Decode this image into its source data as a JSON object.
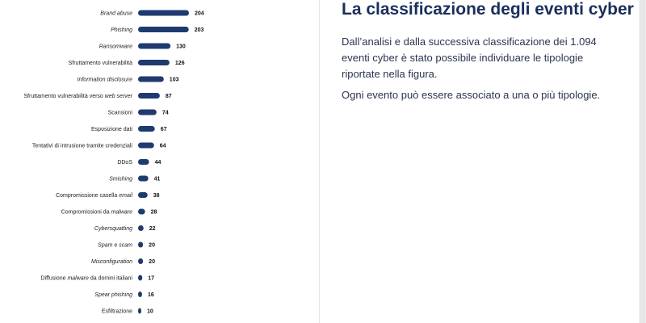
{
  "chart_data": {
    "type": "bar",
    "orientation": "horizontal",
    "categories": [
      [
        {
          "t": "Brand abuse",
          "i": true
        }
      ],
      [
        {
          "t": "Phishing",
          "i": true
        }
      ],
      [
        {
          "t": "Ransomware",
          "i": true
        }
      ],
      [
        {
          "t": "Sfruttamento vulnerabilità",
          "i": false
        }
      ],
      [
        {
          "t": "Information disclosure",
          "i": true
        }
      ],
      [
        {
          "t": "Sfruttamento vulnerabilità verso ",
          "i": false
        },
        {
          "t": "web server",
          "i": true
        }
      ],
      [
        {
          "t": "Scansioni",
          "i": false
        }
      ],
      [
        {
          "t": "Esposizione dati",
          "i": false
        }
      ],
      [
        {
          "t": "Tentativi di intrusione tramite credenziali",
          "i": false
        }
      ],
      [
        {
          "t": "DDoS",
          "i": false
        }
      ],
      [
        {
          "t": "Smishing",
          "i": true
        }
      ],
      [
        {
          "t": "Compromissione casella ",
          "i": false
        },
        {
          "t": "email",
          "i": true
        }
      ],
      [
        {
          "t": "Compromissioni da ",
          "i": false
        },
        {
          "t": "malware",
          "i": true
        }
      ],
      [
        {
          "t": "Cybersquatting",
          "i": true
        }
      ],
      [
        {
          "t": "Spam",
          "i": true
        },
        {
          "t": " e ",
          "i": false
        },
        {
          "t": "scam",
          "i": true
        }
      ],
      [
        {
          "t": "Misconfiguration",
          "i": true
        }
      ],
      [
        {
          "t": "Diffusione ",
          "i": false
        },
        {
          "t": "malware",
          "i": true
        },
        {
          "t": " da domini italiani",
          "i": false
        }
      ],
      [
        {
          "t": "Spear phishing",
          "i": true
        }
      ],
      [
        {
          "t": "Esfiltrazione",
          "i": false
        }
      ]
    ],
    "values": [
      204,
      203,
      130,
      126,
      103,
      87,
      74,
      67,
      64,
      44,
      41,
      38,
      28,
      22,
      20,
      20,
      17,
      16,
      10
    ],
    "bar_color": "#1f3a6e"
  },
  "right": {
    "title": "La classificazione degli eventi cyber",
    "paragraph1": "Dall’analisi e dalla successiva classificazione dei 1.094 eventi cyber è stato possibile individuare le tipologie riportate nella figura.",
    "paragraph2": "Ogni evento può essere associato a una o più tipologie."
  }
}
